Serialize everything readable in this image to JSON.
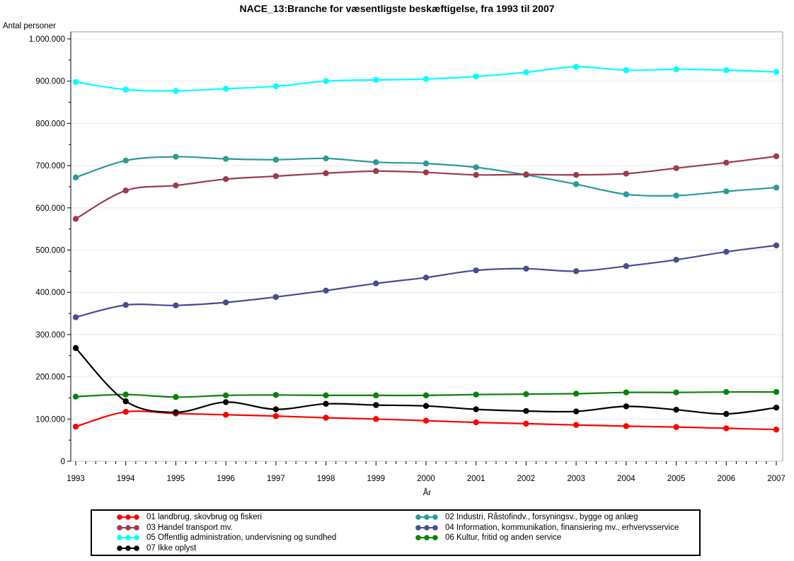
{
  "chart_data": {
    "type": "line",
    "title": "NACE_13:Branche for væsentligste beskæftigelse, fra 1993 til 2007",
    "xlabel": "År",
    "ylabel": "Antal personer",
    "x": [
      1993,
      1994,
      1995,
      1996,
      1997,
      1998,
      1999,
      2000,
      2001,
      2002,
      2003,
      2004,
      2005,
      2006,
      2007
    ],
    "ylim": [
      0,
      1000000
    ],
    "grid": true,
    "legend_position": "bottom",
    "y_tick_values": [
      0,
      100000,
      200000,
      300000,
      400000,
      500000,
      600000,
      700000,
      800000,
      900000,
      1000000
    ],
    "y_tick_labels": [
      "0",
      "100.000",
      "200.000",
      "300.000",
      "400.000",
      "500.000",
      "600.000",
      "700.000",
      "800.000",
      "900.000",
      "1.000.000"
    ],
    "y_minor_step": 50000,
    "x_minor_per_interval": 4,
    "series": [
      {
        "id": "01",
        "name": "01 landbrug, skovbrug og fiskeri",
        "color": "#ff0000",
        "values": [
          82000,
          117000,
          113000,
          110000,
          107000,
          103000,
          100000,
          96000,
          92000,
          89000,
          86000,
          83000,
          81000,
          78000,
          75000
        ]
      },
      {
        "id": "02",
        "name": "02 Industri, Råstofindv., forsyningsv., bygge og anlæg",
        "color": "#2b9a9a",
        "values": [
          672000,
          712000,
          721000,
          716000,
          714000,
          717000,
          708000,
          705000,
          696000,
          678000,
          656000,
          632000,
          629000,
          639000,
          648000
        ]
      },
      {
        "id": "03",
        "name": "03 Handel transport mv.",
        "color": "#9d3b4c",
        "values": [
          574000,
          641000,
          653000,
          668000,
          675000,
          682000,
          687000,
          684000,
          678000,
          679000,
          678000,
          681000,
          694000,
          707000,
          722000
        ]
      },
      {
        "id": "04",
        "name": "04 Information, kommunikation, finansiering mv., erhvervsservice",
        "color": "#494c90",
        "values": [
          341000,
          370000,
          369000,
          376000,
          389000,
          404000,
          421000,
          435000,
          452000,
          456000,
          450000,
          462000,
          477000,
          496000,
          511000
        ]
      },
      {
        "id": "05",
        "name": "05 Offentlig administration, undervisning og sundhed",
        "color": "#00ffff",
        "values": [
          898000,
          880000,
          877000,
          882000,
          888000,
          900000,
          903000,
          905000,
          911000,
          921000,
          934000,
          926000,
          928000,
          926000,
          922000
        ]
      },
      {
        "id": "06",
        "name": "06 Kultur, fritid og anden service",
        "color": "#0a820a",
        "values": [
          153000,
          158000,
          152000,
          156000,
          157000,
          156000,
          156000,
          156000,
          158000,
          159000,
          160000,
          163000,
          163000,
          164000,
          164000
        ]
      },
      {
        "id": "07",
        "name": "07 Ikke oplyst",
        "color": "#000000",
        "values": [
          268000,
          142000,
          116000,
          140000,
          123000,
          136000,
          133000,
          131000,
          123000,
          119000,
          118000,
          130000,
          122000,
          112000,
          127000
        ]
      }
    ],
    "legend_columns": [
      [
        "01",
        "03",
        "05",
        "07"
      ],
      [
        "02",
        "04",
        "06"
      ]
    ],
    "colors": {
      "frame": "#9e9e9e",
      "gridline": "#e9e9e9",
      "axis_left": "#000000",
      "axis_bottom": "#c9c9c9",
      "tick": "#000000",
      "text": "#000000"
    }
  }
}
